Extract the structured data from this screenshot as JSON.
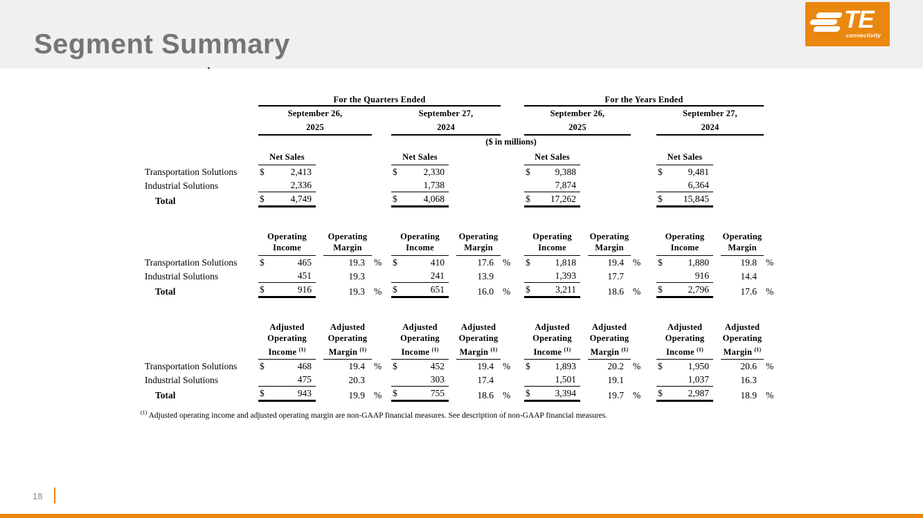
{
  "header": {
    "title": "Segment Summary"
  },
  "logo": {
    "brand": "TE",
    "sub": "connectivity"
  },
  "footer": {
    "page_number": "18"
  },
  "colors": {
    "orange": "#E9870F",
    "band_gray": "#F0F0F0",
    "title_gray": "#757575"
  },
  "table": {
    "group_quarters": "For the Quarters Ended",
    "group_years": "For the Years Ended",
    "periods": [
      {
        "date": "September 26,",
        "year": "2025"
      },
      {
        "date": "September 27,",
        "year": "2024"
      },
      {
        "date": "September 26,",
        "year": "2025"
      },
      {
        "date": "September 27,",
        "year": "2024"
      }
    ],
    "units_note": "($ in millions)",
    "header_sup": "(1)",
    "sections": [
      {
        "income_header": [
          "Net Sales"
        ],
        "margin_header": [],
        "rows": [
          {
            "label": "Transportation Solutions",
            "d0": "$",
            "v0": "2,413",
            "d1": "$",
            "v1": "2,330",
            "d2": "$",
            "v2": "9,388",
            "d3": "$",
            "v3": "9,481"
          },
          {
            "label": "Industrial Solutions",
            "v0": "2,336",
            "v1": "1,738",
            "v2": "7,874",
            "v3": "6,364"
          },
          {
            "label": "Total",
            "d0": "$",
            "v0": "4,749",
            "d1": "$",
            "v1": "4,068",
            "d2": "$",
            "v2": "17,262",
            "d3": "$",
            "v3": "15,845"
          }
        ]
      },
      {
        "income_header": [
          "Operating",
          "Income"
        ],
        "margin_header": [
          "Operating",
          "Margin"
        ],
        "rows": [
          {
            "label": "Transportation Solutions",
            "d0": "$",
            "v0": "465",
            "m0": "19.3",
            "p0": "%",
            "d1": "$",
            "v1": "410",
            "m1": "17.6",
            "p1": "%",
            "d2": "$",
            "v2": "1,818",
            "m2": "19.4",
            "p2": "%",
            "d3": "$",
            "v3": "1,880",
            "m3": "19.8",
            "p3": "%"
          },
          {
            "label": "Industrial Solutions",
            "v0": "451",
            "m0": "19.3",
            "v1": "241",
            "m1": "13.9",
            "v2": "1,393",
            "m2": "17.7",
            "v3": "916",
            "m3": "14.4"
          },
          {
            "label": "Total",
            "d0": "$",
            "v0": "916",
            "m0": "19.3",
            "p0": "%",
            "d1": "$",
            "v1": "651",
            "m1": "16.0",
            "p1": "%",
            "d2": "$",
            "v2": "3,211",
            "m2": "18.6",
            "p2": "%",
            "d3": "$",
            "v3": "2,796",
            "m3": "17.6",
            "p3": "%"
          }
        ]
      },
      {
        "income_header": [
          "Adjusted",
          "Operating",
          "Income"
        ],
        "margin_header": [
          "Adjusted",
          "Operating",
          "Margin"
        ],
        "rows": [
          {
            "label": "Transportation Solutions",
            "d0": "$",
            "v0": "468",
            "m0": "19.4",
            "p0": "%",
            "d1": "$",
            "v1": "452",
            "m1": "19.4",
            "p1": "%",
            "d2": "$",
            "v2": "1,893",
            "m2": "20.2",
            "p2": "%",
            "d3": "$",
            "v3": "1,950",
            "m3": "20.6",
            "p3": "%"
          },
          {
            "label": "Industrial Solutions",
            "v0": "475",
            "m0": "20.3",
            "v1": "303",
            "m1": "17.4",
            "v2": "1,501",
            "m2": "19.1",
            "v3": "1,037",
            "m3": "16.3"
          },
          {
            "label": "Total",
            "d0": "$",
            "v0": "943",
            "m0": "19.9",
            "p0": "%",
            "d1": "$",
            "v1": "755",
            "m1": "18.6",
            "p1": "%",
            "d2": "$",
            "v2": "3,394",
            "m2": "19.7",
            "p2": "%",
            "d3": "$",
            "v3": "2,987",
            "m3": "18.9",
            "p3": "%"
          }
        ]
      }
    ],
    "footnote_sup": "(1)",
    "footnote": "Adjusted operating income and adjusted operating margin are non-GAAP financial measures. See description of non-GAAP financial measures."
  }
}
